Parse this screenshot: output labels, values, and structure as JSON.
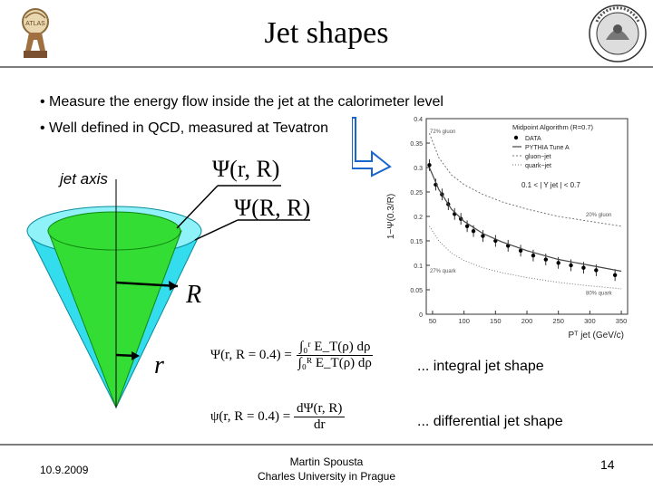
{
  "title": "Jet shapes",
  "bullets": [
    "Measure the energy flow inside the jet at the calorimeter level",
    "Well defined in QCD, measured at Tevatron"
  ],
  "diagram": {
    "jet_axis_label": "jet axis",
    "psi_r_R": "Ψ(r, R)",
    "psi_R_R": "Ψ(R, R)",
    "R_label": "R",
    "r_label": "r",
    "cone_outer_color": "#33ddee",
    "cone_inner_color": "#33dd33"
  },
  "equations": {
    "eq1_lhs": "Ψ(r, R = 0.4) =",
    "eq1_num": "∫₀ʳ E_T(ρ) dρ",
    "eq1_den": "∫₀ᴿ E_T(ρ) dρ",
    "eq2_lhs": "ψ(r, R = 0.4) =",
    "eq2_num": "dΨ(r, R)",
    "eq2_den": "dr",
    "integral_note": "... integral jet shape",
    "differential_note": "... differential jet shape"
  },
  "chart_data": {
    "type": "scatter",
    "ylabel": "1−Ψ(0.3/R)",
    "xlabel": "Pᵀ jet (GeV/c)",
    "xlim": [
      40,
      360
    ],
    "ylim": [
      0,
      0.4
    ],
    "x_ticks": [
      50,
      100,
      150,
      200,
      250,
      300,
      350
    ],
    "y_ticks": [
      0,
      0.05,
      0.1,
      0.15,
      0.2,
      0.25,
      0.3,
      0.35,
      0.4
    ],
    "legend_title": "Midpoint Algorithm (R=0.7)",
    "legend": [
      "DATA",
      "PYTHIA Tune A",
      "gluon−jet",
      "quark−jet"
    ],
    "cut_label": "0.1 < | Y jet | < 0.7",
    "annotations": [
      "72% gluon",
      "27% quark",
      "20% gluon",
      "80% quark"
    ],
    "series": [
      {
        "name": "DATA",
        "x": [
          45,
          55,
          65,
          75,
          85,
          95,
          105,
          115,
          130,
          150,
          170,
          190,
          210,
          230,
          250,
          270,
          290,
          310,
          340
        ],
        "values": [
          0.305,
          0.265,
          0.245,
          0.225,
          0.205,
          0.195,
          0.18,
          0.17,
          0.16,
          0.15,
          0.14,
          0.13,
          0.12,
          0.112,
          0.105,
          0.1,
          0.095,
          0.09,
          0.08
        ]
      },
      {
        "name": "PYTHIA Tune A",
        "x": [
          45,
          60,
          80,
          100,
          130,
          160,
          200,
          250,
          300,
          350
        ],
        "values": [
          0.3,
          0.255,
          0.215,
          0.19,
          0.165,
          0.148,
          0.13,
          0.112,
          0.1,
          0.088
        ]
      },
      {
        "name": "gluon−jet",
        "x": [
          45,
          60,
          80,
          100,
          130,
          160,
          200,
          250,
          300,
          350
        ],
        "values": [
          0.37,
          0.32,
          0.285,
          0.265,
          0.245,
          0.23,
          0.215,
          0.2,
          0.19,
          0.18
        ]
      },
      {
        "name": "quark−jet",
        "x": [
          45,
          60,
          80,
          100,
          130,
          160,
          200,
          250,
          300,
          350
        ],
        "values": [
          0.18,
          0.15,
          0.125,
          0.11,
          0.095,
          0.085,
          0.075,
          0.065,
          0.058,
          0.052
        ]
      }
    ]
  },
  "footer": {
    "date": "10.9.2009",
    "author": "Martin Spousta",
    "affiliation": "Charles University in Prague",
    "page": "14"
  }
}
